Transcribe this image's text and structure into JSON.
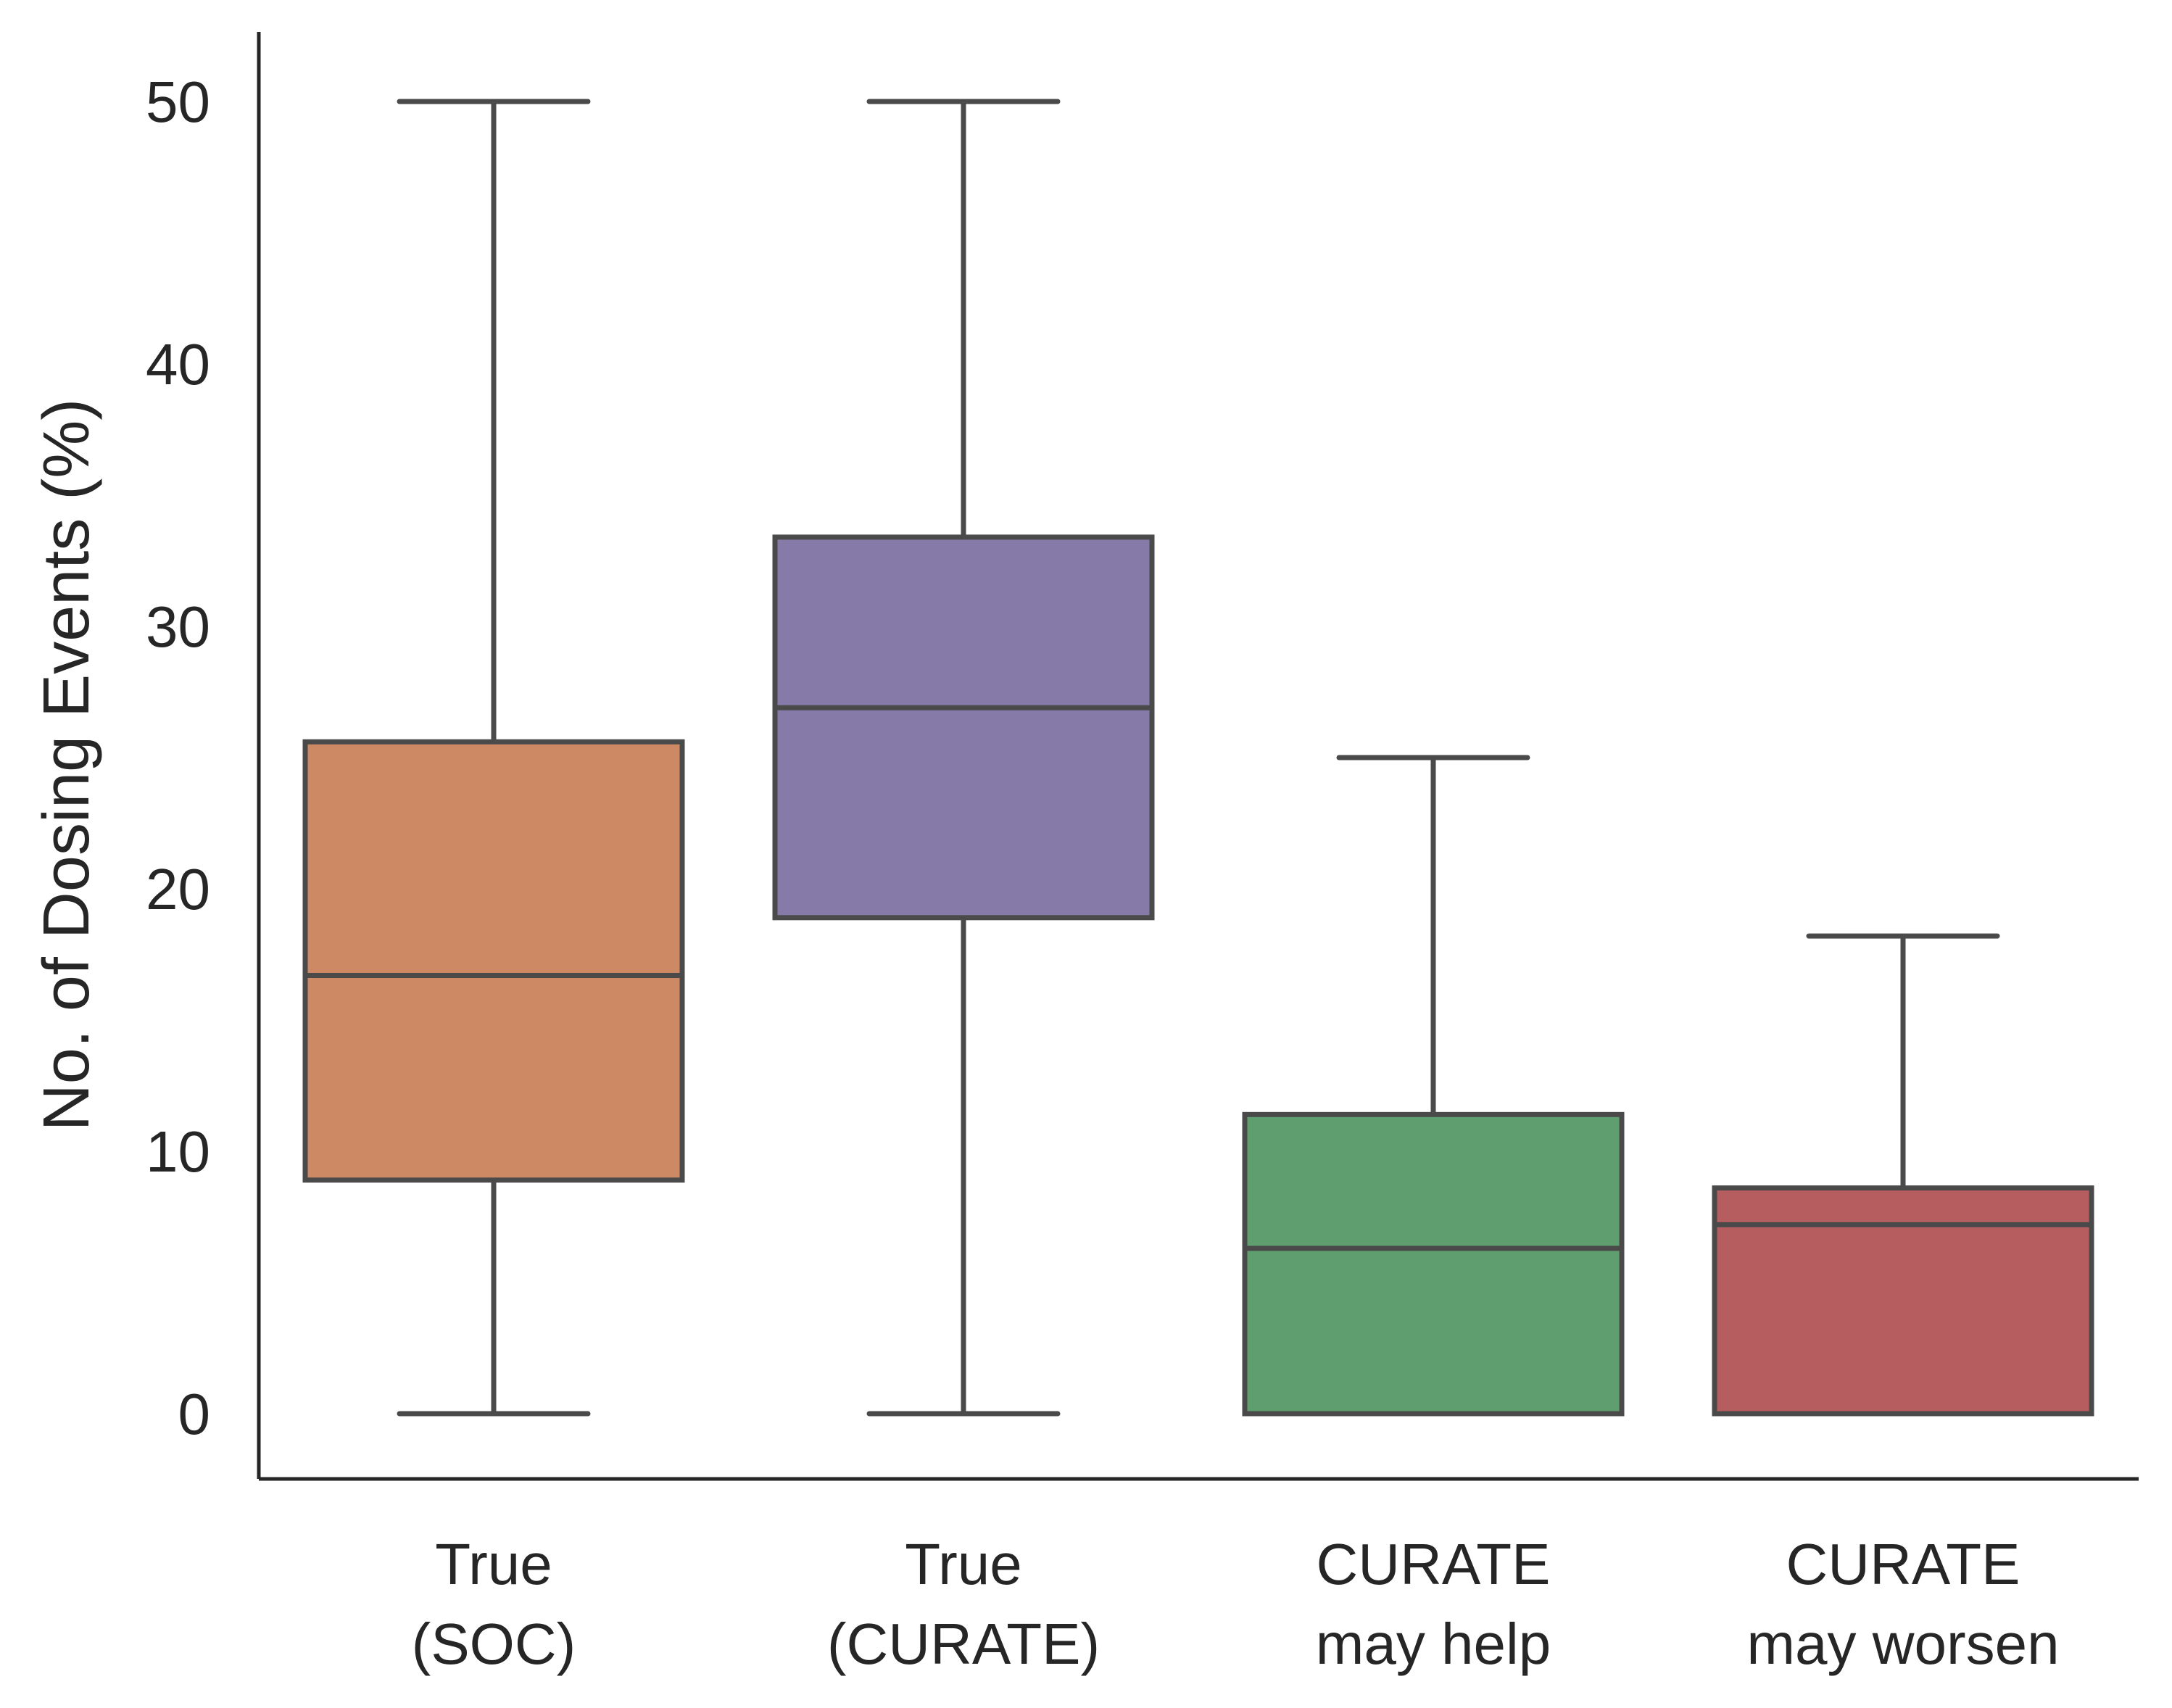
{
  "chart_data": {
    "type": "box",
    "title": "",
    "xlabel": "",
    "ylabel": "No. of Dosing Events (%)",
    "ylim": [
      -2.5,
      52.5
    ],
    "yticks": [
      0,
      10,
      20,
      30,
      40,
      50
    ],
    "grid": false,
    "legend": "none",
    "categories": [
      {
        "line1": "True",
        "line2": "(SOC)"
      },
      {
        "line1": "True",
        "line2": "(CURATE)"
      },
      {
        "line1": "CURATE",
        "line2": "may help"
      },
      {
        "line1": "CURATE",
        "line2": "may worsen"
      }
    ],
    "series": [
      {
        "whisker_low": 0,
        "q1": 8.9,
        "median": 16.7,
        "q3": 25.6,
        "whisker_high": 50,
        "color": "#cd8963"
      },
      {
        "whisker_low": 0,
        "q1": 18.9,
        "median": 26.9,
        "q3": 33.4,
        "whisker_high": 50,
        "color": "#867aa9"
      },
      {
        "whisker_low": 0,
        "q1": 0,
        "median": 6.3,
        "q3": 11.4,
        "whisker_high": 25,
        "color": "#5f9e6e"
      },
      {
        "whisker_low": 0,
        "q1": 0,
        "median": 7.2,
        "q3": 8.6,
        "whisker_high": 18.2,
        "color": "#b65d60"
      }
    ],
    "line_color": "#4a4a4a",
    "axis_color": "#262626"
  }
}
